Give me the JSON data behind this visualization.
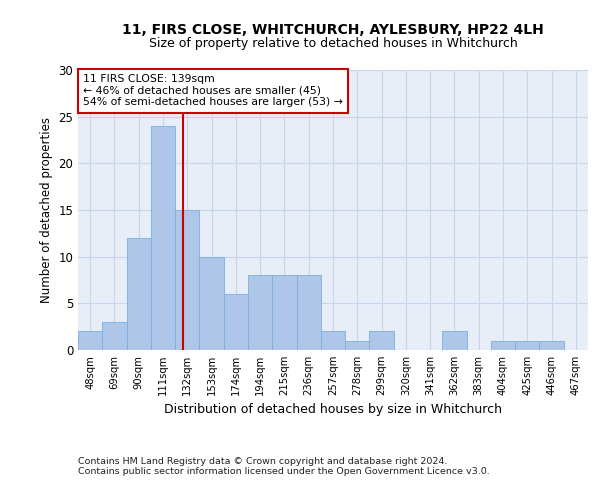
{
  "title1": "11, FIRS CLOSE, WHITCHURCH, AYLESBURY, HP22 4LH",
  "title2": "Size of property relative to detached houses in Whitchurch",
  "xlabel": "Distribution of detached houses by size in Whitchurch",
  "ylabel": "Number of detached properties",
  "bar_labels": [
    "48sqm",
    "69sqm",
    "90sqm",
    "111sqm",
    "132sqm",
    "153sqm",
    "174sqm",
    "194sqm",
    "215sqm",
    "236sqm",
    "257sqm",
    "278sqm",
    "299sqm",
    "320sqm",
    "341sqm",
    "362sqm",
    "383sqm",
    "404sqm",
    "425sqm",
    "446sqm",
    "467sqm"
  ],
  "bar_values": [
    2,
    3,
    12,
    24,
    15,
    10,
    6,
    8,
    8,
    8,
    2,
    1,
    2,
    0,
    0,
    2,
    0,
    1,
    1,
    1,
    0
  ],
  "bar_color": "#aec6e8",
  "bar_edge_color": "#7aafe0",
  "grid_color": "#c8d4e8",
  "background_color": "#e8eef8",
  "vline_color": "#cc0000",
  "annotation_text": "11 FIRS CLOSE: 139sqm\n← 46% of detached houses are smaller (45)\n54% of semi-detached houses are larger (53) →",
  "annotation_box_color": "#ffffff",
  "annotation_box_edge": "#cc0000",
  "ylim": [
    0,
    30
  ],
  "yticks": [
    0,
    5,
    10,
    15,
    20,
    25,
    30
  ],
  "footer1": "Contains HM Land Registry data © Crown copyright and database right 2024.",
  "footer2": "Contains public sector information licensed under the Open Government Licence v3.0."
}
